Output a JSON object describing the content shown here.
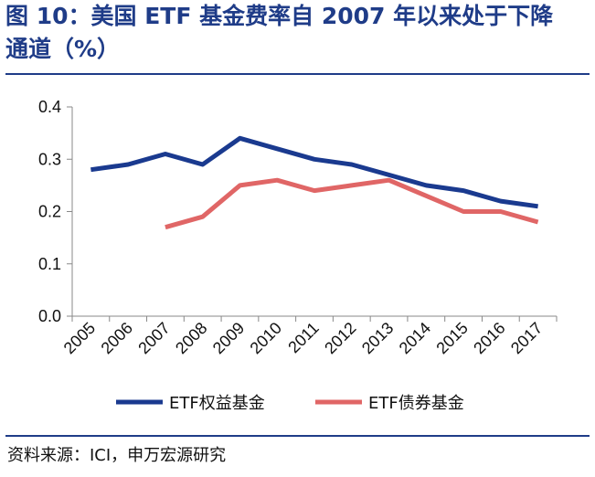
{
  "title": {
    "line1": "图 10：美国 ETF 基金费率自 2007 年以来处于下降",
    "line2": "通道（%）"
  },
  "source": "资料来源：ICI，申万宏源研究",
  "colors": {
    "rule": "#1f3c88",
    "equity": "#1a3a8f",
    "bond": "#e06666"
  },
  "chart_data": {
    "type": "line",
    "title": "美国 ETF 基金费率自 2007 年以来处于下降通道（%）",
    "xlabel": "",
    "ylabel": "",
    "ylim": [
      0,
      0.4
    ],
    "yticks": [
      "0.0",
      "0.1",
      "0.2",
      "0.3",
      "0.4"
    ],
    "categories": [
      "2005",
      "2006",
      "2007",
      "2008",
      "2009",
      "2010",
      "2011",
      "2012",
      "2013",
      "2014",
      "2015",
      "2016",
      "2017"
    ],
    "series": [
      {
        "name": "ETF权益基金",
        "color": "#1a3a8f",
        "values": [
          0.28,
          0.29,
          0.31,
          0.29,
          0.34,
          0.32,
          0.3,
          0.29,
          0.27,
          0.25,
          0.24,
          0.22,
          0.21
        ]
      },
      {
        "name": "ETF债券基金",
        "color": "#e06666",
        "values": [
          null,
          null,
          0.17,
          0.19,
          0.25,
          0.26,
          0.24,
          0.25,
          0.26,
          0.23,
          0.2,
          0.2,
          0.18
        ]
      }
    ],
    "legend_position": "bottom",
    "grid": false
  }
}
